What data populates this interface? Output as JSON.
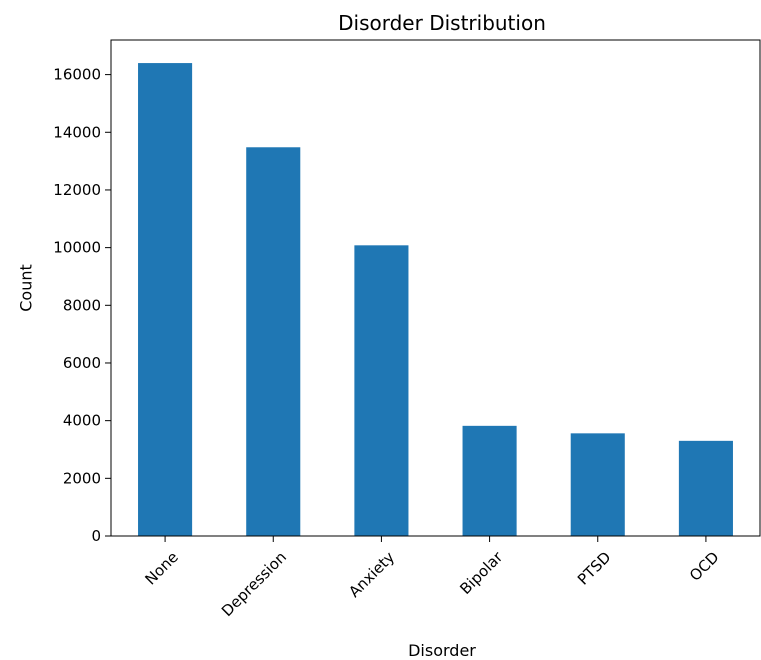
{
  "chart_data": {
    "type": "bar",
    "title": "Disorder Distribution",
    "xlabel": "Disorder",
    "ylabel": "Count",
    "categories": [
      "None",
      "Depression",
      "Anxiety",
      "Bipolar",
      "PTSD",
      "OCD"
    ],
    "values": [
      16400,
      13480,
      10080,
      3820,
      3560,
      3300
    ],
    "ylim": [
      0,
      17200
    ],
    "yticks": [
      0,
      2000,
      4000,
      6000,
      8000,
      10000,
      12000,
      14000,
      16000
    ],
    "bar_color": "#1f77b4",
    "grid": false,
    "x_tick_rotation": "45 degrees",
    "legend": "none"
  }
}
